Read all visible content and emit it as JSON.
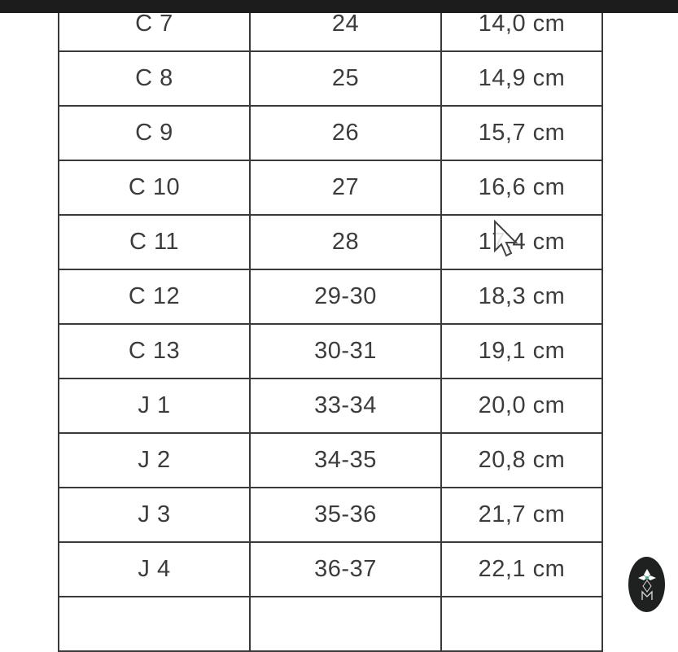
{
  "table": {
    "rows": [
      [
        "C 7",
        "24",
        "14,0 cm"
      ],
      [
        "C 8",
        "25",
        "14,9 cm"
      ],
      [
        "C 9",
        "26",
        "15,7 cm"
      ],
      [
        "C 10",
        "27",
        "16,6 cm"
      ],
      [
        "C 11",
        "28",
        "17,4 cm"
      ],
      [
        "C 12",
        "29-30",
        "18,3 cm"
      ],
      [
        "C 13",
        "30-31",
        "19,1 cm"
      ],
      [
        "J 1",
        "33-34",
        "20,0 cm"
      ],
      [
        "J 2",
        "34-35",
        "20,8 cm"
      ],
      [
        "J 3",
        "35-36",
        "21,7 cm"
      ],
      [
        "J 4",
        "36-37",
        "22,1 cm"
      ],
      [
        "",
        "",
        ""
      ]
    ]
  },
  "icons": {
    "cursor": "mouse-pointer-icon",
    "badge": "logo-badge-icon"
  },
  "colors": {
    "topbar": "#1b1c1b",
    "badge": "#1f2020",
    "accent": "#3fae8e"
  }
}
